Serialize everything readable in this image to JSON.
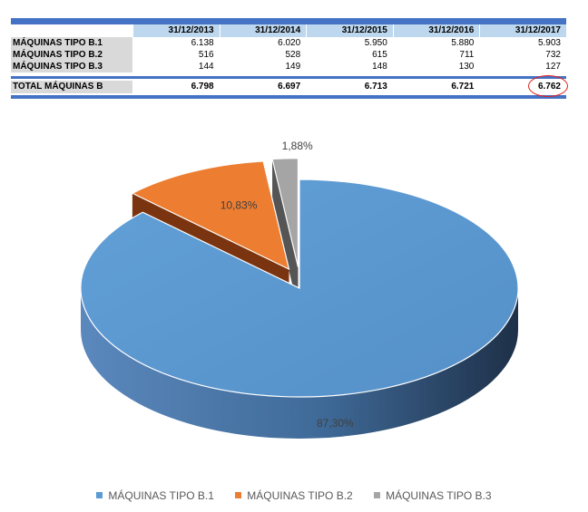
{
  "table": {
    "headers": [
      "31/12/2013",
      "31/12/2014",
      "31/12/2015",
      "31/12/2016",
      "31/12/2017"
    ],
    "rows": [
      {
        "label": "MÁQUINAS TIPO B.1",
        "values": [
          "6.138",
          "6.020",
          "5.950",
          "5.880",
          "5.903"
        ]
      },
      {
        "label": "MÁQUINAS TIPO B.2",
        "values": [
          "516",
          "528",
          "615",
          "711",
          "732"
        ]
      },
      {
        "label": "MÁQUINAS TIPO B.3",
        "values": [
          "144",
          "149",
          "148",
          "130",
          "127"
        ]
      }
    ],
    "total": {
      "label": "TOTAL MÁQUINAS B",
      "values": [
        "6.798",
        "6.697",
        "6.713",
        "6.721",
        "6.762"
      ]
    }
  },
  "chart_data": {
    "type": "pie",
    "style": "3d-exploded",
    "title": "",
    "slices": [
      {
        "name": "MÁQUINAS TIPO B.1",
        "value": 87.3,
        "label": "87,30%",
        "color": "#5b9bd5"
      },
      {
        "name": "MÁQUINAS TIPO B.2",
        "value": 10.83,
        "label": "10,83%",
        "color": "#ed7d31"
      },
      {
        "name": "MÁQUINAS TIPO B.3",
        "value": 1.88,
        "label": "1,88%",
        "color": "#a5a5a5"
      }
    ],
    "legend_position": "bottom"
  },
  "colors": {
    "header_blue": "#bdd7ee",
    "bar_blue": "#4472c4",
    "highlight_ring": "#e02020"
  }
}
